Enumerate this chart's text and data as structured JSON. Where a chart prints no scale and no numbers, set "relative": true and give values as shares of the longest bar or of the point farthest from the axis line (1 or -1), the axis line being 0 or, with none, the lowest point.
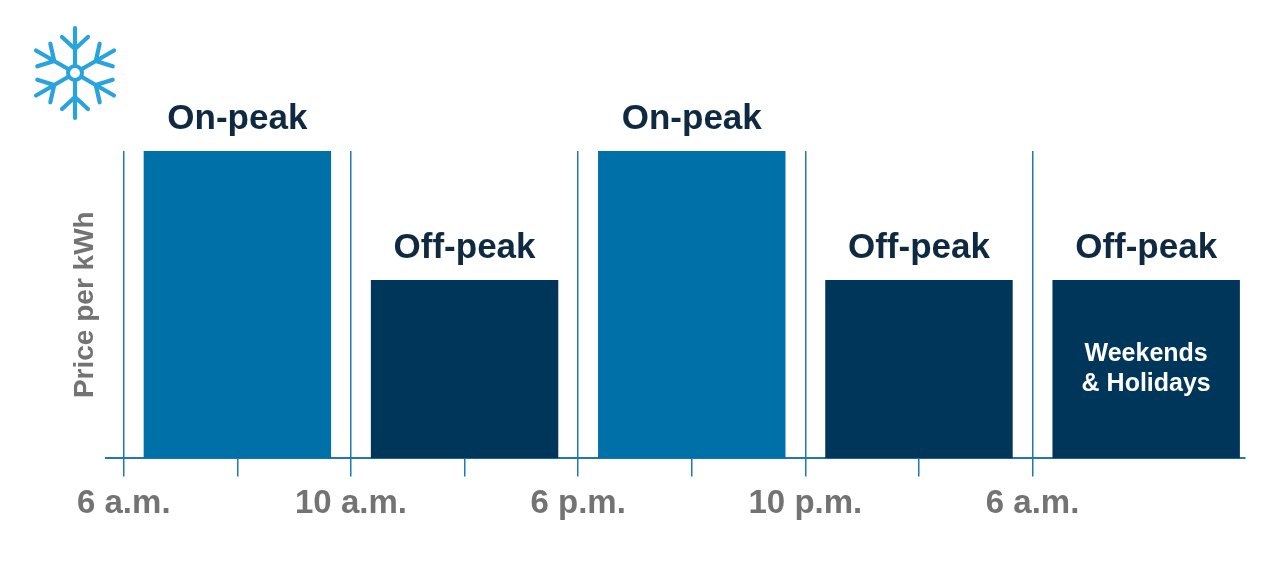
{
  "chart_data": {
    "type": "bar",
    "ylabel": "Price per kWh",
    "relative": true,
    "categories": [
      "6 a.m.",
      null,
      "10 a.m.",
      null,
      "6 p.m.",
      null,
      "10 p.m.",
      null,
      "6 a.m.",
      null
    ],
    "series": [
      {
        "name": "On-peak",
        "color": "#0071a8",
        "values": [
          null,
          1,
          null,
          null,
          null,
          1,
          null,
          null,
          null,
          null
        ]
      },
      {
        "name": "Off-peak",
        "color": "#00365a",
        "values": [
          null,
          null,
          null,
          0.58,
          null,
          null,
          null,
          0.58,
          null,
          0.58
        ]
      }
    ],
    "grid": "x",
    "annotations": [
      "Weekends & Holidays"
    ]
  }
}
